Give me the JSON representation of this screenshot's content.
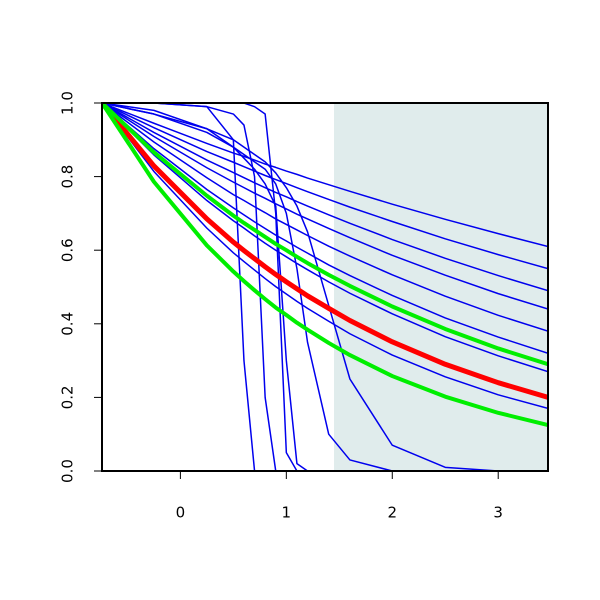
{
  "chart_data": {
    "type": "line",
    "x": [
      -0.74,
      -0.25,
      0.25,
      0.5,
      0.6,
      0.7,
      0.8,
      0.9,
      1.0,
      1.1,
      1.2,
      1.4,
      1.6,
      2,
      2.5,
      3,
      3.47
    ],
    "xlim": [
      -0.74,
      3.47
    ],
    "ylim": [
      0,
      1
    ],
    "xticks": [
      0,
      1,
      2,
      3
    ],
    "yticks": [
      {
        "value": 0,
        "label": "0.0"
      },
      {
        "value": 0.2,
        "label": "0.2"
      },
      {
        "value": 0.4,
        "label": "0.4"
      },
      {
        "value": 0.6,
        "label": "0.6"
      },
      {
        "value": 0.8,
        "label": "0.8"
      },
      {
        "value": 1,
        "label": "1.0"
      }
    ],
    "shaded_xrange": [
      1.45,
      3.47
    ],
    "shade_color": "#e0ecec",
    "series": [
      {
        "color": "#0000ee",
        "values": [
          1,
          0.945,
          0.89,
          0.864,
          0.855,
          0.845,
          0.834,
          0.825,
          0.815,
          0.806,
          0.796,
          0.778,
          0.76,
          0.725,
          0.684,
          0.645,
          0.61
        ]
      },
      {
        "color": "#0000ee",
        "values": [
          1,
          0.933,
          0.868,
          0.839,
          0.827,
          0.815,
          0.803,
          0.792,
          0.781,
          0.77,
          0.759,
          0.738,
          0.717,
          0.678,
          0.631,
          0.588,
          0.55
        ]
      },
      {
        "color": "#0000ee",
        "values": [
          1,
          0.92,
          0.845,
          0.811,
          0.797,
          0.783,
          0.77,
          0.757,
          0.745,
          0.732,
          0.72,
          0.696,
          0.673,
          0.629,
          0.578,
          0.531,
          0.49
        ]
      },
      {
        "color": "#0000ee",
        "values": [
          1,
          0.909,
          0.824,
          0.785,
          0.77,
          0.755,
          0.741,
          0.726,
          0.712,
          0.698,
          0.685,
          0.659,
          0.634,
          0.586,
          0.532,
          0.482,
          0.44
        ]
      },
      {
        "color": "#0000ee",
        "values": [
          1,
          0.894,
          0.797,
          0.751,
          0.735,
          0.718,
          0.702,
          0.685,
          0.67,
          0.655,
          0.64,
          0.611,
          0.584,
          0.533,
          0.475,
          0.423,
          0.38
        ]
      },
      {
        "color": "#0000ee",
        "values": [
          1,
          0.876,
          0.765,
          0.715,
          0.696,
          0.677,
          0.659,
          0.641,
          0.625,
          0.608,
          0.592,
          0.56,
          0.531,
          0.477,
          0.416,
          0.364,
          0.32
        ]
      },
      {
        "color": "#0000ee",
        "values": [
          1,
          0.859,
          0.735,
          0.68,
          0.66,
          0.639,
          0.619,
          0.6,
          0.582,
          0.564,
          0.547,
          0.514,
          0.483,
          0.427,
          0.365,
          0.313,
          0.27
        ]
      },
      {
        "color": "#0000ee",
        "values": [
          1,
          0.814,
          0.66,
          0.593,
          0.569,
          0.546,
          0.523,
          0.501,
          0.481,
          0.461,
          0.442,
          0.407,
          0.373,
          0.315,
          0.256,
          0.207,
          0.17
        ]
      },
      {
        "color": "#0000ee",
        "values": [
          1,
          1,
          0.99,
          0.9,
          0.3,
          0,
          0,
          0,
          0,
          0,
          0,
          0,
          0,
          0,
          0,
          0,
          0
        ]
      },
      {
        "color": "#0000ee",
        "values": [
          1,
          1,
          0.99,
          0.97,
          0.94,
          0.8,
          0.2,
          0,
          0,
          0,
          0,
          0,
          0,
          0,
          0,
          0,
          0
        ]
      },
      {
        "color": "#0000ee",
        "values": [
          1,
          1,
          1,
          1,
          1,
          0.99,
          0.97,
          0.7,
          0.05,
          0,
          0,
          0,
          0,
          0,
          0,
          0,
          0
        ]
      },
      {
        "color": "#0000ee",
        "values": [
          1,
          0.98,
          0.93,
          0.88,
          0.85,
          0.82,
          0.78,
          0.72,
          0.3,
          0.02,
          0,
          0,
          0,
          0,
          0,
          0,
          0
        ]
      },
      {
        "color": "#0000ee",
        "values": [
          1,
          0.97,
          0.92,
          0.88,
          0.86,
          0.84,
          0.82,
          0.78,
          0.7,
          0.55,
          0.35,
          0.1,
          0.03,
          0,
          0,
          0,
          0
        ]
      },
      {
        "color": "#0000ee",
        "values": [
          1,
          0.97,
          0.93,
          0.9,
          0.88,
          0.86,
          0.84,
          0.81,
          0.77,
          0.72,
          0.65,
          0.45,
          0.25,
          0.07,
          0.01,
          0,
          0
        ]
      },
      {
        "color": "#ff0000",
        "width": 5,
        "values": [
          1,
          0.829,
          0.685,
          0.622,
          0.599,
          0.577,
          0.555,
          0.534,
          0.514,
          0.495,
          0.476,
          0.442,
          0.409,
          0.351,
          0.29,
          0.24,
          0.2
        ]
      },
      {
        "color": "#00ee00",
        "width": 4,
        "values": [
          1,
          0.866,
          0.748,
          0.694,
          0.674,
          0.655,
          0.636,
          0.617,
          0.6,
          0.582,
          0.565,
          0.533,
          0.503,
          0.447,
          0.386,
          0.333,
          0.29
        ]
      },
      {
        "color": "#00ee00",
        "width": 4,
        "values": [
          1,
          0.786,
          0.613,
          0.542,
          0.516,
          0.491,
          0.467,
          0.444,
          0.424,
          0.403,
          0.384,
          0.348,
          0.315,
          0.258,
          0.202,
          0.158,
          0.125
        ]
      }
    ]
  }
}
